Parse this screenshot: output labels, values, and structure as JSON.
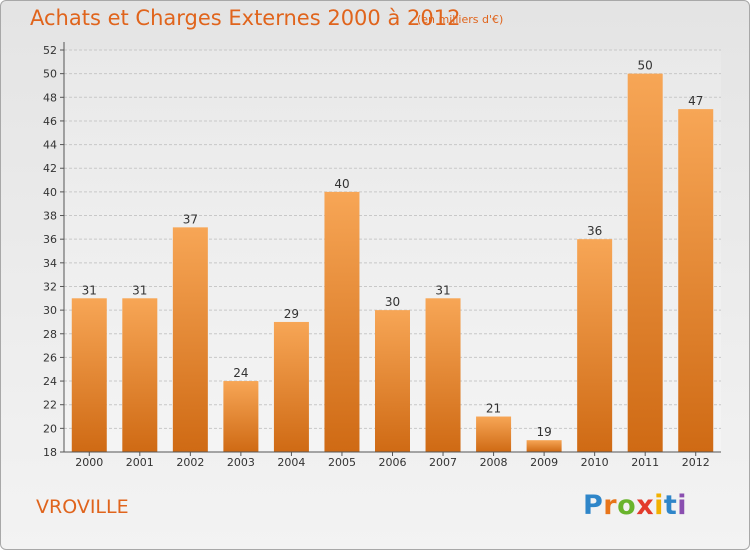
{
  "header": {
    "title": "Achats et Charges Externes 2000 à 2012",
    "subtitle": "(en milliers d'€)"
  },
  "footer": {
    "commune": "VROVILLE",
    "logo": "Proxiti"
  },
  "colors": {
    "accent": "#e0641c",
    "bar_top": "#f7a656",
    "bar_bottom": "#cf6a14"
  },
  "chart_data": {
    "type": "bar",
    "title": "Achats et Charges Externes 2000 à 2012",
    "subtitle": "(en milliers d'€)",
    "categories": [
      "2000",
      "2001",
      "2002",
      "2003",
      "2004",
      "2005",
      "2006",
      "2007",
      "2008",
      "2009",
      "2010",
      "2011",
      "2012"
    ],
    "values": [
      31,
      31,
      37,
      24,
      29,
      40,
      30,
      31,
      21,
      19,
      36,
      50,
      47
    ],
    "ylim": [
      18,
      52
    ],
    "yticks": [
      18,
      20,
      22,
      24,
      26,
      28,
      30,
      32,
      34,
      36,
      38,
      40,
      42,
      44,
      46,
      48,
      50,
      52
    ],
    "grid": true,
    "data_labels": true
  }
}
